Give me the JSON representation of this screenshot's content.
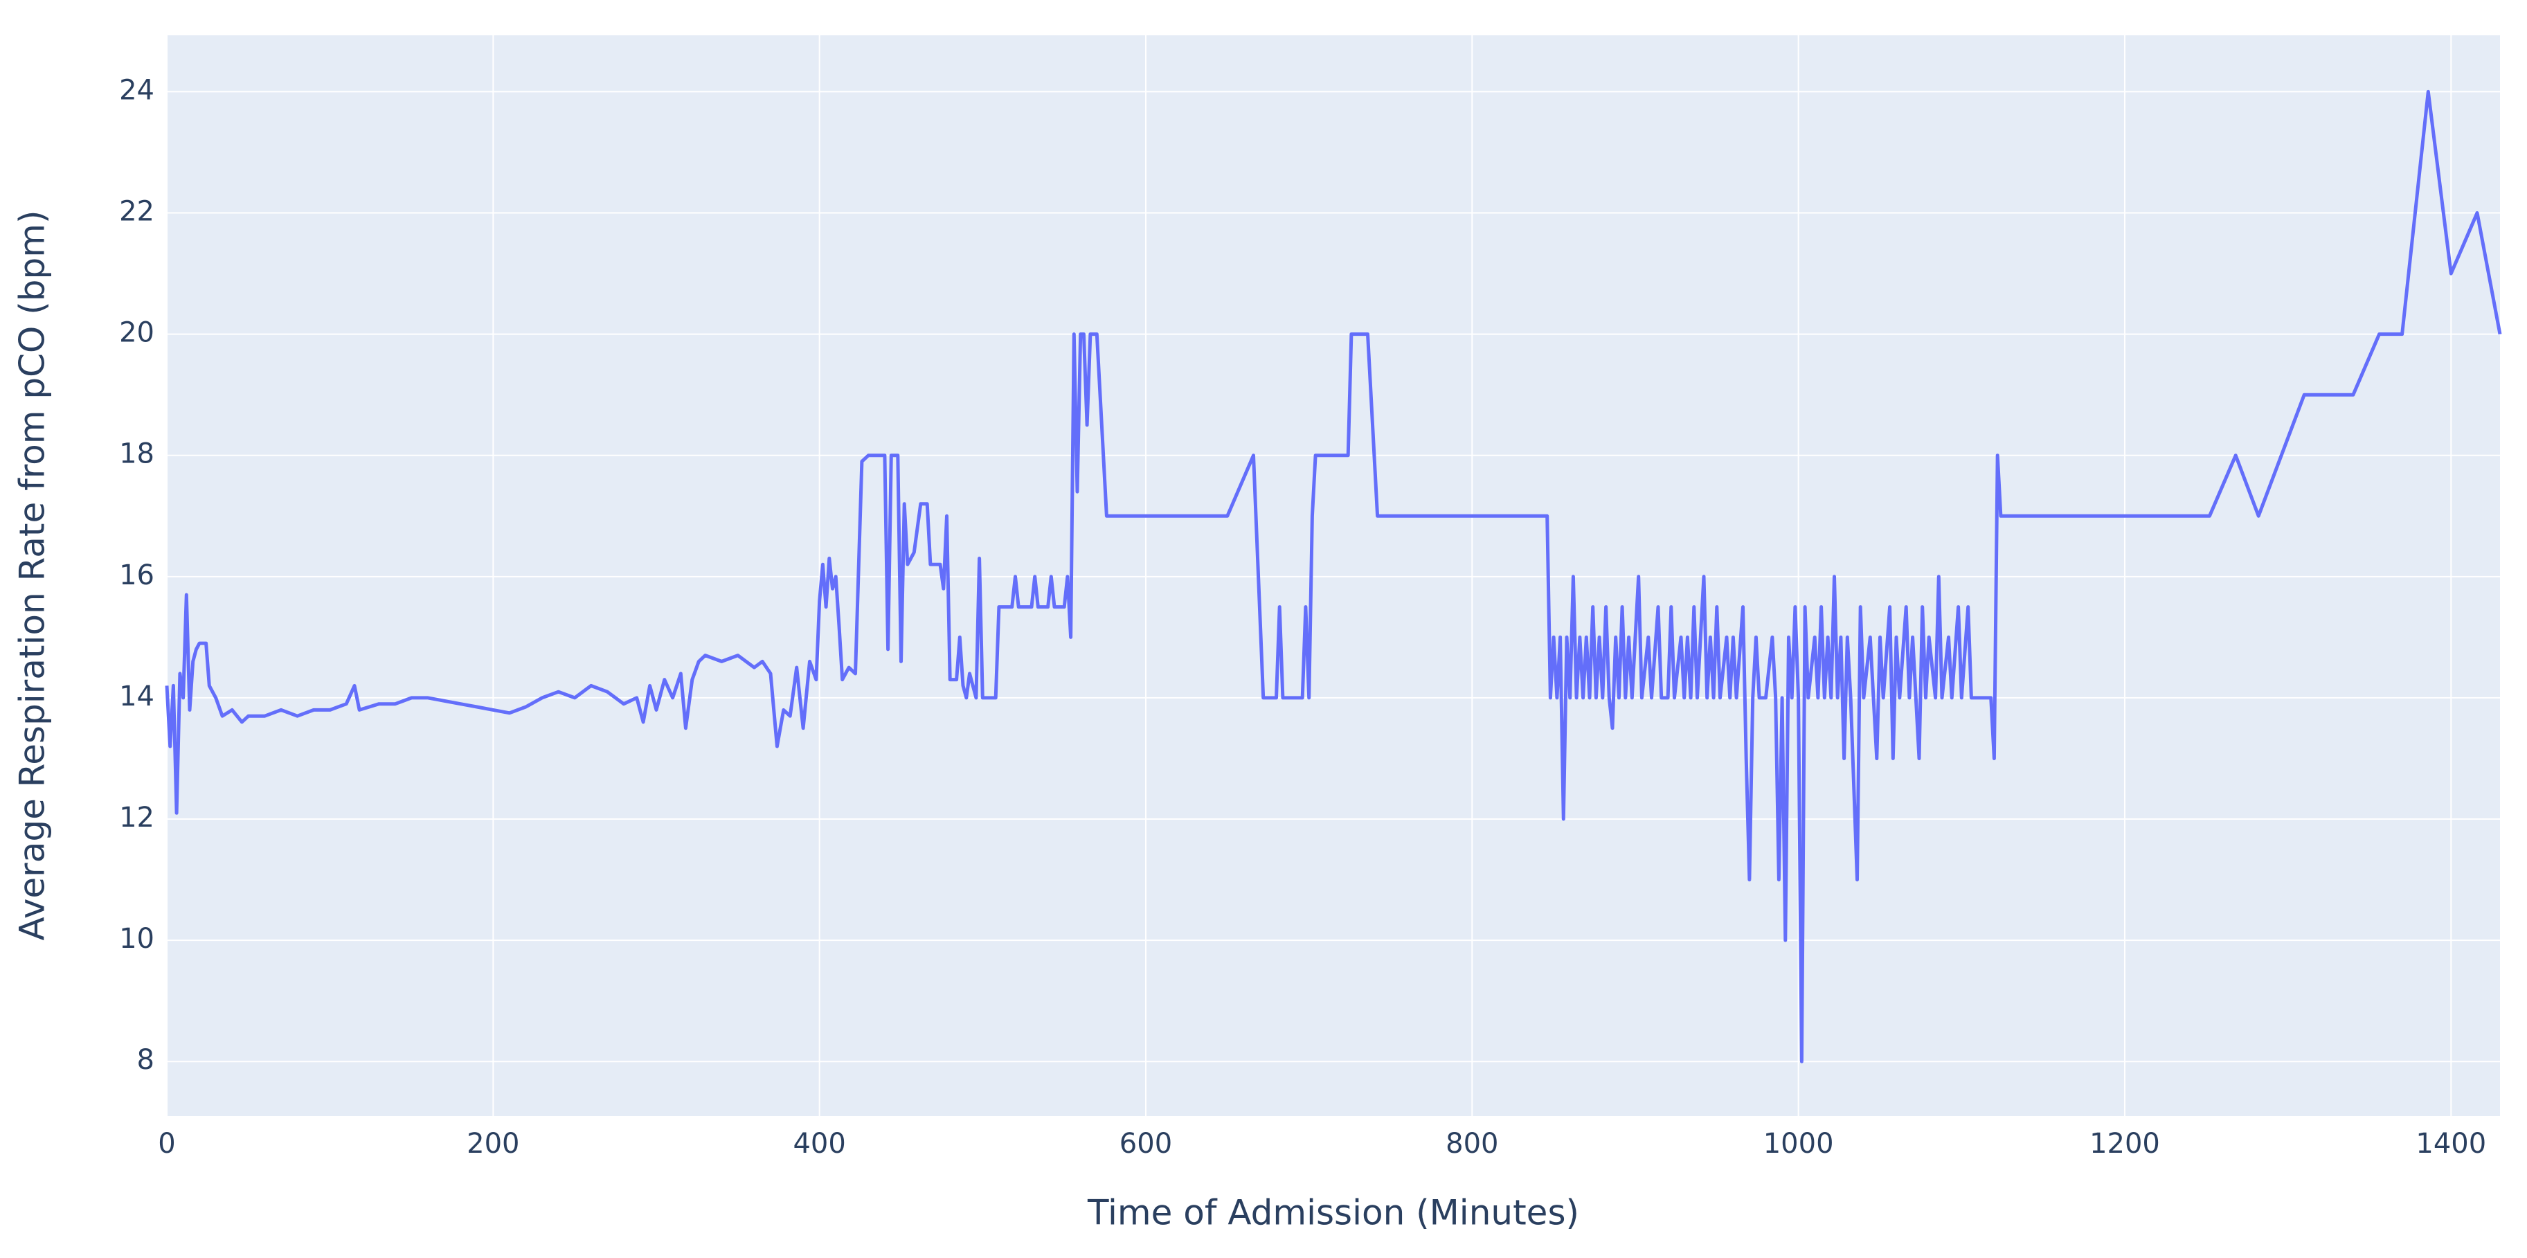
{
  "chart_data": {
    "type": "line",
    "x_label": "Time of Admission (Minutes)",
    "y_label": "Average Respiration Rate from pCO (bpm)",
    "xlim": [
      0,
      1430
    ],
    "ylim": [
      7.1,
      24.93
    ],
    "xticks": [
      0,
      200,
      400,
      600,
      800,
      1000,
      1200,
      1400
    ],
    "yticks": [
      8,
      10,
      12,
      14,
      16,
      18,
      20,
      22,
      24
    ],
    "grid": true,
    "background": "#E5ECF6",
    "series": [
      {
        "color": "#636EFA",
        "x": [
          0,
          2,
          4,
          6,
          8,
          10,
          12,
          14,
          16,
          18,
          20,
          24,
          26,
          30,
          34,
          40,
          46,
          50,
          60,
          70,
          80,
          90,
          100,
          110,
          115,
          118,
          130,
          140,
          150,
          160,
          170,
          180,
          190,
          200,
          210,
          220,
          230,
          240,
          250,
          260,
          270,
          280,
          288,
          292,
          296,
          300,
          305,
          310,
          315,
          318,
          322,
          326,
          330,
          340,
          350,
          360,
          365,
          370,
          374,
          378,
          382,
          386,
          390,
          394,
          398,
          400,
          402,
          404,
          406,
          408,
          410,
          412,
          414,
          418,
          422,
          426,
          430,
          440,
          442,
          444,
          448,
          450,
          452,
          454,
          458,
          462,
          466,
          468,
          474,
          476,
          478,
          480,
          484,
          486,
          488,
          490,
          492,
          496,
          498,
          500,
          508,
          510,
          518,
          520,
          522,
          530,
          532,
          534,
          540,
          542,
          544,
          550,
          552,
          554,
          556,
          558,
          560,
          562,
          564,
          566,
          570,
          576,
          650,
          666,
          672,
          680,
          682,
          684,
          696,
          698,
          700,
          702,
          704,
          724,
          726,
          736,
          742,
          846,
          848,
          850,
          852,
          854,
          856,
          858,
          860,
          862,
          864,
          866,
          868,
          870,
          872,
          874,
          876,
          878,
          880,
          882,
          884,
          886,
          888,
          890,
          892,
          894,
          896,
          898,
          902,
          904,
          908,
          910,
          914,
          916,
          920,
          922,
          924,
          928,
          930,
          932,
          934,
          936,
          938,
          942,
          944,
          946,
          948,
          950,
          952,
          956,
          958,
          960,
          962,
          966,
          968,
          970,
          972,
          974,
          976,
          980,
          984,
          986,
          988,
          990,
          992,
          994,
          996,
          998,
          1000,
          1002,
          1004,
          1006,
          1010,
          1012,
          1014,
          1016,
          1018,
          1020,
          1022,
          1024,
          1026,
          1028,
          1030,
          1032,
          1036,
          1038,
          1040,
          1044,
          1046,
          1048,
          1050,
          1052,
          1056,
          1058,
          1060,
          1062,
          1066,
          1068,
          1070,
          1074,
          1076,
          1078,
          1080,
          1084,
          1086,
          1088,
          1092,
          1094,
          1098,
          1100,
          1104,
          1106,
          1118,
          1120,
          1122,
          1124,
          1252,
          1268,
          1282,
          1310,
          1340,
          1356,
          1370,
          1386,
          1400,
          1416,
          1430
        ],
        "values": [
          14.2,
          13.2,
          14.2,
          12.1,
          14.4,
          14.0,
          15.7,
          13.8,
          14.6,
          14.8,
          14.9,
          14.9,
          14.2,
          14.0,
          13.7,
          13.8,
          13.6,
          13.7,
          13.7,
          13.8,
          13.7,
          13.8,
          13.8,
          13.9,
          14.2,
          13.8,
          13.9,
          13.9,
          14.0,
          14.0,
          13.95,
          13.9,
          13.85,
          13.8,
          13.75,
          13.85,
          14.0,
          14.1,
          14.0,
          14.2,
          14.1,
          13.9,
          14.0,
          13.6,
          14.2,
          13.8,
          14.3,
          14.0,
          14.4,
          13.5,
          14.3,
          14.6,
          14.7,
          14.6,
          14.7,
          14.5,
          14.6,
          14.4,
          13.2,
          13.8,
          13.7,
          14.5,
          13.5,
          14.6,
          14.3,
          15.6,
          16.2,
          15.5,
          16.3,
          15.8,
          16.0,
          15.2,
          14.3,
          14.5,
          14.4,
          17.9,
          18.0,
          18.0,
          14.8,
          18.0,
          18.0,
          14.6,
          17.2,
          16.2,
          16.4,
          17.2,
          17.2,
          16.2,
          16.2,
          15.8,
          17.0,
          14.3,
          14.3,
          15.0,
          14.2,
          14.0,
          14.4,
          14.0,
          16.3,
          14.0,
          14.0,
          15.5,
          15.5,
          16.0,
          15.5,
          15.5,
          16.0,
          15.5,
          15.5,
          16.0,
          15.5,
          15.5,
          16.0,
          15.0,
          20.0,
          17.4,
          20.0,
          20.0,
          18.5,
          20.0,
          20.0,
          17.0,
          17.0,
          18.0,
          14.0,
          14.0,
          15.5,
          14.0,
          14.0,
          15.5,
          14.0,
          17.0,
          18.0,
          18.0,
          20.0,
          20.0,
          17.0,
          17.0,
          14.0,
          15,
          14,
          15,
          12,
          15,
          14,
          16,
          14,
          15,
          14,
          15,
          14,
          15.5,
          14,
          15,
          14,
          15.5,
          14,
          13.5,
          15,
          14,
          15.5,
          14,
          15,
          14,
          16,
          14,
          15,
          14,
          15.5,
          14,
          14,
          15.5,
          14,
          15,
          14,
          15,
          14,
          15.5,
          14,
          16,
          14,
          15,
          14,
          15.5,
          14,
          15,
          14,
          15,
          14,
          15.5,
          13,
          11,
          14,
          15,
          14,
          14,
          15,
          14,
          11,
          14,
          10,
          15,
          14,
          15.5,
          14,
          8,
          15.5,
          14,
          15,
          14,
          15.5,
          14,
          15,
          14,
          16,
          14,
          15,
          13,
          15,
          14,
          11,
          15.5,
          14,
          15,
          14,
          13,
          15,
          14,
          15.5,
          13,
          15,
          14,
          15.5,
          14,
          15,
          13,
          15.5,
          14,
          15,
          14,
          16,
          14,
          15,
          14,
          15.5,
          14,
          15.5,
          14,
          14,
          13,
          18,
          17,
          17,
          18,
          17,
          19,
          19,
          20,
          20,
          24,
          21,
          22,
          20
        ]
      }
    ]
  }
}
